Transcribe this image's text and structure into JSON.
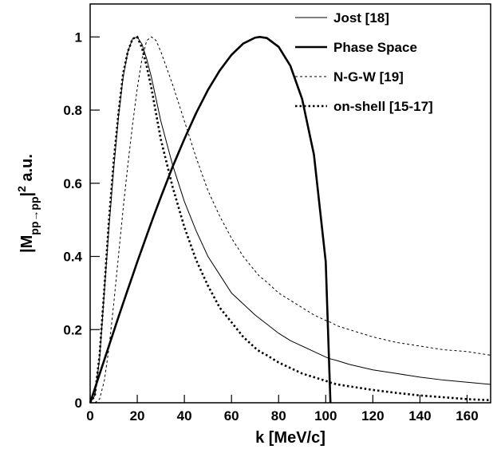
{
  "chart_data": {
    "type": "line",
    "xlabel": "k  [MeV/c]",
    "ylabel": [
      {
        "text": "|M"
      },
      {
        "text": "pp→pp",
        "shift": "sub"
      },
      {
        "text": "|"
      },
      {
        "text": "2",
        "shift": "super"
      },
      {
        "text": " a.u."
      }
    ],
    "x": [
      0,
      2,
      4,
      6,
      8,
      10,
      12,
      14,
      16,
      18,
      20,
      22,
      24,
      26,
      28,
      30,
      35,
      40,
      45,
      50,
      55,
      60,
      65,
      70,
      72,
      75,
      80,
      85,
      90,
      95,
      100,
      102,
      105,
      110,
      120,
      130,
      140,
      150,
      160,
      170
    ],
    "series": [
      {
        "name": "Jost [18]",
        "color": "#000000",
        "width": 1,
        "dash": "none",
        "values": [
          0,
          0.02,
          0.12,
          0.3,
          0.48,
          0.64,
          0.78,
          0.89,
          0.96,
          0.995,
          1.0,
          0.98,
          0.94,
          0.89,
          0.83,
          0.77,
          0.65,
          0.55,
          0.47,
          0.4,
          0.35,
          0.3,
          0.27,
          0.24,
          0.23,
          0.215,
          0.19,
          0.17,
          0.155,
          0.14,
          0.125,
          0.12,
          0.115,
          0.105,
          0.09,
          0.08,
          0.07,
          0.062,
          0.056,
          0.05
        ]
      },
      {
        "name": "Phase Space",
        "color": "#000000",
        "width": 2.6,
        "dash": "none",
        "values": [
          0,
          0.039,
          0.078,
          0.117,
          0.156,
          0.195,
          0.234,
          0.272,
          0.31,
          0.347,
          0.385,
          0.421,
          0.457,
          0.493,
          0.528,
          0.562,
          0.645,
          0.721,
          0.792,
          0.855,
          0.908,
          0.951,
          0.982,
          0.998,
          1.0,
          0.997,
          0.973,
          0.921,
          0.83,
          0.678,
          0.386,
          0,
          null,
          null,
          null,
          null,
          null,
          null,
          null,
          null
        ]
      },
      {
        "name": "N-G-W [19]",
        "color": "#000000",
        "width": 1,
        "dash": "3 3",
        "values": [
          0,
          0,
          0.01,
          0.06,
          0.15,
          0.27,
          0.4,
          0.53,
          0.65,
          0.76,
          0.86,
          0.94,
          0.99,
          1.0,
          0.99,
          0.96,
          0.87,
          0.77,
          0.67,
          0.58,
          0.51,
          0.45,
          0.4,
          0.36,
          0.345,
          0.33,
          0.3,
          0.28,
          0.26,
          0.24,
          0.225,
          0.22,
          0.21,
          0.2,
          0.18,
          0.165,
          0.155,
          0.145,
          0.14,
          0.13
        ]
      },
      {
        "name": "on-shell [15-17]",
        "color": "#000000",
        "width": 2.6,
        "dash": "2.5 3",
        "values": [
          0,
          0.02,
          0.13,
          0.31,
          0.5,
          0.66,
          0.79,
          0.9,
          0.96,
          0.995,
          1.0,
          0.97,
          0.92,
          0.86,
          0.79,
          0.72,
          0.59,
          0.48,
          0.39,
          0.32,
          0.26,
          0.22,
          0.18,
          0.15,
          0.14,
          0.13,
          0.11,
          0.095,
          0.08,
          0.07,
          0.06,
          0.055,
          0.05,
          0.045,
          0.035,
          0.027,
          0.02,
          0.015,
          0.01,
          0.007
        ]
      }
    ],
    "xlim": [
      0,
      170
    ],
    "xticks": [
      0,
      20,
      40,
      60,
      80,
      100,
      120,
      140,
      160
    ],
    "ylim": [
      0,
      1.09
    ],
    "yticks": [
      0,
      0.2,
      0.4,
      0.6,
      0.8,
      1
    ],
    "legend": "upper-right",
    "grid": false
  }
}
